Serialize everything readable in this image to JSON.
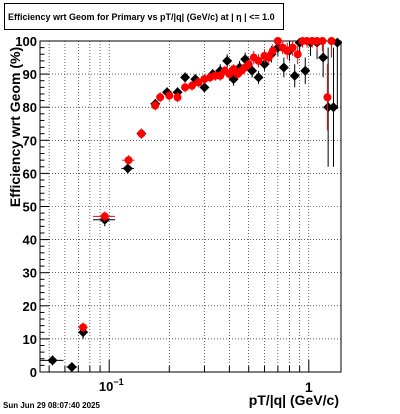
{
  "chart_data": {
    "type": "scatter",
    "title": "Efficiency wrt Geom for Primary vs pT/|q| (GeV/c) at |  η  | <= 1.0",
    "xlabel": "pT/|q| (GeV/c)",
    "ylabel": "Efficiency wrt Geom (%)",
    "x_scale": "log",
    "xlim": [
      0.045,
      1.45
    ],
    "ylim": [
      0,
      100
    ],
    "y_ticks": [
      "0",
      "10",
      "20",
      "30",
      "40",
      "50",
      "60",
      "70",
      "80",
      "90",
      "100"
    ],
    "x_tick_labels": [
      {
        "value": 0.1,
        "base": "10",
        "exp": "−1"
      },
      {
        "value": 1,
        "text": "1"
      }
    ],
    "grid": true,
    "series": [
      {
        "color": "#000000",
        "marker": "diamond",
        "points": [
          {
            "x": 0.052,
            "y": 3.5,
            "xerr": 0.007,
            "yerr": 1.5
          },
          {
            "x": 0.065,
            "y": 1.5,
            "xerr": 0.004,
            "yerr": 1
          },
          {
            "x": 0.074,
            "y": 12,
            "xerr": 0.004,
            "yerr": 2
          },
          {
            "x": 0.095,
            "y": 46,
            "xerr": 0.012,
            "yerr": 2
          },
          {
            "x": 0.124,
            "y": 61.5,
            "xerr": 0.009,
            "yerr": 1.5
          },
          {
            "x": 0.145,
            "y": 72,
            "xerr": 0.006,
            "yerr": 1.5
          },
          {
            "x": 0.17,
            "y": 81,
            "xerr": 0.006,
            "yerr": 1.5
          },
          {
            "x": 0.195,
            "y": 84.5,
            "xerr": 0.006,
            "yerr": 1.5
          },
          {
            "x": 0.22,
            "y": 84.5,
            "xerr": 0.006,
            "yerr": 1.5
          },
          {
            "x": 0.24,
            "y": 89,
            "xerr": 0.006,
            "yerr": 1.5
          },
          {
            "x": 0.27,
            "y": 88.5,
            "xerr": 0.006,
            "yerr": 1.5
          },
          {
            "x": 0.3,
            "y": 86,
            "xerr": 0.006,
            "yerr": 1.5
          },
          {
            "x": 0.33,
            "y": 90,
            "xerr": 0.006,
            "yerr": 1.5
          },
          {
            "x": 0.36,
            "y": 91,
            "xerr": 0.006,
            "yerr": 2
          },
          {
            "x": 0.39,
            "y": 94,
            "xerr": 0.006,
            "yerr": 2
          },
          {
            "x": 0.42,
            "y": 88.5,
            "xerr": 0.006,
            "yerr": 2
          },
          {
            "x": 0.45,
            "y": 92,
            "xerr": 0.006,
            "yerr": 2
          },
          {
            "x": 0.48,
            "y": 94.5,
            "xerr": 0.006,
            "yerr": 2
          },
          {
            "x": 0.52,
            "y": 91,
            "xerr": 0.006,
            "yerr": 2
          },
          {
            "x": 0.56,
            "y": 89,
            "xerr": 0.006,
            "yerr": 2
          },
          {
            "x": 0.6,
            "y": 93,
            "xerr": 0.006,
            "yerr": 2
          },
          {
            "x": 0.65,
            "y": 96,
            "xerr": 0.006,
            "yerr": 2.5
          },
          {
            "x": 0.7,
            "y": 98,
            "xerr": 0.006,
            "yerr": 2.5
          },
          {
            "x": 0.75,
            "y": 92,
            "xerr": 0.006,
            "yerr": 3
          },
          {
            "x": 0.8,
            "y": 97,
            "xerr": 0.006,
            "yerr": 3
          },
          {
            "x": 0.85,
            "y": 89.5,
            "xerr": 0.006,
            "yerr": 3.5
          },
          {
            "x": 0.9,
            "y": 99.5,
            "xerr": 0.006,
            "yerr": 3
          },
          {
            "x": 0.96,
            "y": 91,
            "xerr": 0.006,
            "yerr": 4
          },
          {
            "x": 1.02,
            "y": 99.5,
            "xerr": 0.006,
            "yerr": 4
          },
          {
            "x": 1.1,
            "y": 99.5,
            "xerr": 0.006,
            "yerr": 5
          },
          {
            "x": 1.18,
            "y": 95,
            "xerr": 0.006,
            "yerr": 6
          },
          {
            "x": 1.25,
            "y": 80,
            "xerr": 0.006,
            "yerr": 18
          },
          {
            "x": 1.33,
            "y": 80,
            "xerr": 0.006,
            "yerr": 18
          },
          {
            "x": 1.39,
            "y": 99.5,
            "xerr": 0.006,
            "yerr": 20
          }
        ]
      },
      {
        "color": "#ff0000",
        "marker": "circle",
        "points": [
          {
            "x": 0.074,
            "y": 13.5,
            "xerr": 0.004,
            "yerr": 1.5
          },
          {
            "x": 0.095,
            "y": 47,
            "xerr": 0.012,
            "yerr": 1.5
          },
          {
            "x": 0.125,
            "y": 64,
            "xerr": 0.009,
            "yerr": 1.5
          },
          {
            "x": 0.145,
            "y": 72,
            "xerr": 0.006,
            "yerr": 1.5
          },
          {
            "x": 0.17,
            "y": 80.5,
            "xerr": 0.006,
            "yerr": 1.5
          },
          {
            "x": 0.18,
            "y": 83,
            "xerr": 0.006,
            "yerr": 1.5
          },
          {
            "x": 0.2,
            "y": 83.5,
            "xerr": 0.006,
            "yerr": 1.5
          },
          {
            "x": 0.22,
            "y": 83,
            "xerr": 0.006,
            "yerr": 1.5
          },
          {
            "x": 0.24,
            "y": 86,
            "xerr": 0.006,
            "yerr": 1.5
          },
          {
            "x": 0.26,
            "y": 86.5,
            "xerr": 0.006,
            "yerr": 1.5
          },
          {
            "x": 0.28,
            "y": 87.5,
            "xerr": 0.006,
            "yerr": 1.5
          },
          {
            "x": 0.3,
            "y": 88.5,
            "xerr": 0.006,
            "yerr": 1.5
          },
          {
            "x": 0.32,
            "y": 89,
            "xerr": 0.006,
            "yerr": 1.5
          },
          {
            "x": 0.34,
            "y": 89.5,
            "xerr": 0.006,
            "yerr": 1.5
          },
          {
            "x": 0.36,
            "y": 89.5,
            "xerr": 0.006,
            "yerr": 1.5
          },
          {
            "x": 0.38,
            "y": 91,
            "xerr": 0.006,
            "yerr": 1.5
          },
          {
            "x": 0.4,
            "y": 90,
            "xerr": 0.006,
            "yerr": 1.5
          },
          {
            "x": 0.42,
            "y": 91.5,
            "xerr": 0.006,
            "yerr": 1.5
          },
          {
            "x": 0.44,
            "y": 90,
            "xerr": 0.006,
            "yerr": 1.5
          },
          {
            "x": 0.46,
            "y": 91,
            "xerr": 0.006,
            "yerr": 1.5
          },
          {
            "x": 0.48,
            "y": 92,
            "xerr": 0.006,
            "yerr": 1.5
          },
          {
            "x": 0.5,
            "y": 93,
            "xerr": 0.006,
            "yerr": 1.5
          },
          {
            "x": 0.53,
            "y": 95,
            "xerr": 0.006,
            "yerr": 2
          },
          {
            "x": 0.56,
            "y": 94,
            "xerr": 0.006,
            "yerr": 2
          },
          {
            "x": 0.6,
            "y": 95.5,
            "xerr": 0.006,
            "yerr": 2
          },
          {
            "x": 0.63,
            "y": 95,
            "xerr": 0.006,
            "yerr": 2
          },
          {
            "x": 0.66,
            "y": 97,
            "xerr": 0.006,
            "yerr": 2
          },
          {
            "x": 0.7,
            "y": 100,
            "xerr": 0.006,
            "yerr": 2
          },
          {
            "x": 0.74,
            "y": 98,
            "xerr": 0.006,
            "yerr": 2
          },
          {
            "x": 0.78,
            "y": 97,
            "xerr": 0.006,
            "yerr": 2.5
          },
          {
            "x": 0.83,
            "y": 98,
            "xerr": 0.006,
            "yerr": 2.5
          },
          {
            "x": 0.88,
            "y": 96,
            "xerr": 0.006,
            "yerr": 3
          },
          {
            "x": 0.93,
            "y": 100,
            "xerr": 0.006,
            "yerr": 2
          },
          {
            "x": 0.98,
            "y": 100,
            "xerr": 0.006,
            "yerr": 2
          },
          {
            "x": 1.04,
            "y": 100,
            "xerr": 0.006,
            "yerr": 2
          },
          {
            "x": 1.1,
            "y": 100,
            "xerr": 0.006,
            "yerr": 3
          },
          {
            "x": 1.17,
            "y": 100,
            "xerr": 0.006,
            "yerr": 3
          },
          {
            "x": 1.24,
            "y": 83,
            "xerr": 0.006,
            "yerr": 10
          },
          {
            "x": 1.3,
            "y": 100,
            "xerr": 0.006,
            "yerr": 5
          }
        ]
      }
    ]
  },
  "footer": {
    "timestamp": "Sun Jun 29 08:07:40 2025"
  }
}
